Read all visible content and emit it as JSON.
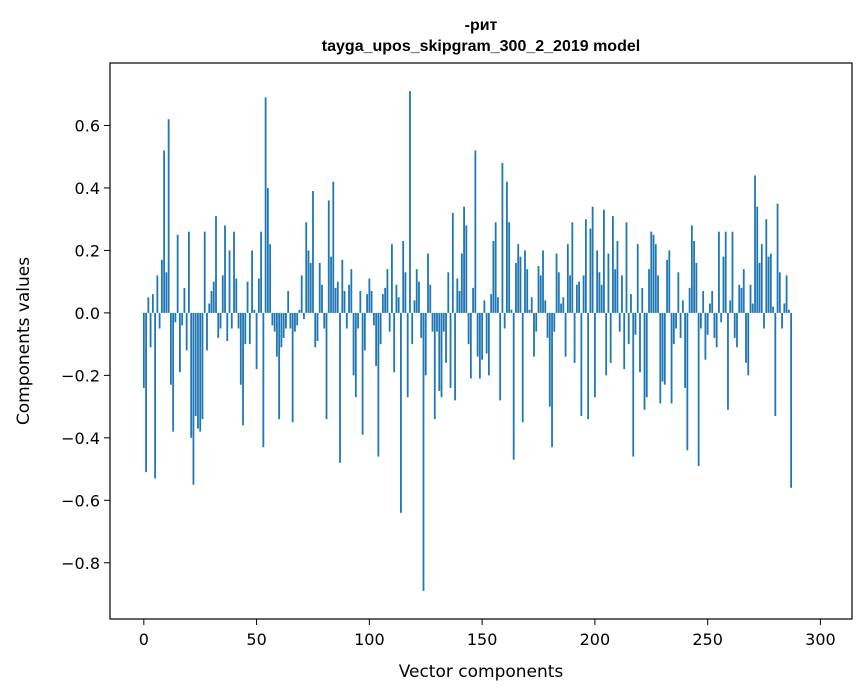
{
  "chart_data": {
    "type": "bar",
    "title": "-рит",
    "subtitle": "tayga_upos_skipgram_300_2_2019 model",
    "xlabel": "Vector components",
    "ylabel": "Components values",
    "xlim": [
      -15,
      314
    ],
    "ylim": [
      -0.98,
      0.8
    ],
    "xticks": [
      0,
      50,
      100,
      150,
      200,
      250,
      300
    ],
    "xtick_labels": [
      "0",
      "50",
      "100",
      "150",
      "200",
      "250",
      "300"
    ],
    "yticks": [
      -0.8,
      -0.6,
      -0.4,
      -0.2,
      0.0,
      0.2,
      0.4,
      0.6
    ],
    "ytick_labels": [
      "−0.8",
      "−0.6",
      "−0.4",
      "−0.2",
      "0.0",
      "0.2",
      "0.4",
      "0.6"
    ],
    "bar_color": "#1f77b4",
    "values": [
      -0.24,
      -0.51,
      0.05,
      -0.11,
      0.06,
      -0.53,
      0.12,
      -0.05,
      0.17,
      0.52,
      0.13,
      0.62,
      -0.23,
      -0.38,
      -0.03,
      0.25,
      -0.19,
      -0.04,
      0.08,
      -0.12,
      0.26,
      -0.4,
      -0.55,
      -0.33,
      -0.37,
      -0.38,
      -0.34,
      0.26,
      -0.12,
      0.03,
      0.07,
      0.1,
      0.31,
      -0.08,
      -0.05,
      0.12,
      0.28,
      -0.09,
      0.2,
      -0.05,
      0.26,
      0.11,
      -0.05,
      -0.23,
      -0.36,
      -0.1,
      0.1,
      -0.1,
      0.2,
      0.01,
      -0.18,
      0.11,
      0.26,
      -0.43,
      0.69,
      0.4,
      0.22,
      -0.04,
      -0.06,
      -0.14,
      -0.34,
      -0.11,
      -0.08,
      -0.05,
      0.07,
      -0.05,
      -0.35,
      -0.06,
      -0.04,
      0.01,
      0.12,
      -0.02,
      0.29,
      0.2,
      0.16,
      0.39,
      -0.11,
      -0.09,
      0.16,
      0.09,
      -0.05,
      -0.34,
      0.36,
      0.18,
      0.42,
      0.08,
      0.1,
      -0.48,
      0.17,
      0.07,
      -0.05,
      0.09,
      0.14,
      -0.2,
      -0.27,
      -0.05,
      0.07,
      -0.39,
      -0.12,
      0.06,
      0.11,
      0.07,
      -0.04,
      -0.17,
      -0.46,
      -0.1,
      0.06,
      0.08,
      0.14,
      -0.06,
      0.22,
      -0.19,
      0.09,
      0.05,
      -0.64,
      0.23,
      0.13,
      -0.27,
      0.71,
      -0.1,
      0.04,
      0.14,
      0.1,
      -0.08,
      -0.89,
      -0.2,
      0.19,
      0.09,
      -0.06,
      -0.34,
      -0.06,
      -0.25,
      -0.27,
      -0.06,
      -0.16,
      0.13,
      -0.24,
      0.32,
      -0.28,
      0.11,
      0.07,
      0.19,
      0.34,
      0.28,
      -0.1,
      -0.21,
      0.08,
      0.52,
      -0.14,
      -0.21,
      -0.15,
      0.04,
      -0.13,
      -0.2,
      0.06,
      0.23,
      0.29,
      0.05,
      -0.28,
      0.48,
      -0.05,
      0.42,
      0.29,
      0.01,
      -0.47,
      0.16,
      0.22,
      0.18,
      -0.35,
      0.2,
      0.14,
      0.01,
      0.05,
      -0.14,
      -0.06,
      0.15,
      0.12,
      0.2,
      0.04,
      -0.08,
      -0.3,
      -0.43,
      -0.06,
      0.19,
      0.13,
      0.03,
      0.05,
      -0.14,
      0.22,
      0.12,
      0.29,
      -0.16,
      0.09,
      0.1,
      -0.33,
      0.12,
      0.3,
      -0.34,
      0.27,
      0.34,
      -0.27,
      0.2,
      0.13,
      0.09,
      0.33,
      -0.2,
      0.19,
      -0.16,
      0.31,
      0.14,
      0.23,
      -0.06,
      0.12,
      -0.18,
      0.29,
      -0.1,
      0.06,
      -0.46,
      -0.07,
      0.22,
      -0.19,
      0.08,
      -0.31,
      -0.27,
      0.14,
      0.26,
      0.25,
      0.22,
      0.12,
      -0.29,
      -0.22,
      -0.23,
      0.17,
      0.2,
      -0.29,
      -0.1,
      -0.05,
      0.13,
      -0.08,
      0.04,
      -0.24,
      -0.44,
      0.08,
      0.28,
      0.23,
      0.16,
      -0.49,
      -0.05,
      0.07,
      -0.15,
      -0.07,
      0.03,
      0.07,
      -0.08,
      -0.11,
      0.26,
      -0.03,
      0.18,
      0.26,
      -0.31,
      0.04,
      0.26,
      -0.08,
      -0.11,
      0.09,
      0.08,
      0.14,
      -0.16,
      -0.2,
      0.09,
      0.03,
      0.44,
      0.34,
      0.16,
      0.22,
      -0.05,
      0.3,
      0.18,
      0.19,
      0.02,
      -0.33,
      0.35,
      0.13,
      -0.05,
      0.03,
      0.12,
      0.01,
      -0.56
    ]
  }
}
